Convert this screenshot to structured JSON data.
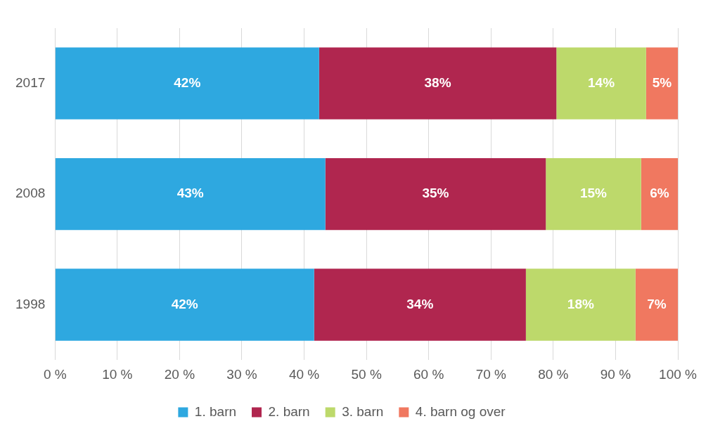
{
  "chart_data": {
    "type": "bar",
    "orientation": "horizontal",
    "stacked": true,
    "data_labels": true,
    "grid": true,
    "legend": "bottom",
    "categories": [
      "2017",
      "2008",
      "1998"
    ],
    "series": [
      {
        "name": "1. barn",
        "color": "#2ea8e0",
        "values": [
          42.4,
          43.4,
          41.6
        ],
        "value_labels": [
          "42%",
          "43%",
          "42%"
        ]
      },
      {
        "name": "2. barn",
        "color": "#b0264f",
        "values": [
          38.1,
          35.4,
          34.0
        ],
        "value_labels": [
          "38%",
          "35%",
          "34%"
        ]
      },
      {
        "name": "3. barn",
        "color": "#bdd96b",
        "values": [
          14.4,
          15.3,
          17.6
        ],
        "value_labels": [
          "14%",
          "15%",
          "18%"
        ]
      },
      {
        "name": "4. barn og over",
        "color": "#f07860",
        "values": [
          5.1,
          5.9,
          6.8
        ],
        "value_labels": [
          "5%",
          "6%",
          "7%"
        ]
      }
    ],
    "xlim": [
      0,
      100
    ],
    "xticks": [
      {
        "value": 0,
        "label": "0 %"
      },
      {
        "value": 10,
        "label": "10 %"
      },
      {
        "value": 20,
        "label": "20 %"
      },
      {
        "value": 30,
        "label": "30 %"
      },
      {
        "value": 40,
        "label": "40 %"
      },
      {
        "value": 50,
        "label": "50 %"
      },
      {
        "value": 60,
        "label": "60 %"
      },
      {
        "value": 70,
        "label": "70 %"
      },
      {
        "value": 80,
        "label": "80 %"
      },
      {
        "value": 90,
        "label": "90 %"
      },
      {
        "value": 100,
        "label": "100 %"
      }
    ]
  }
}
